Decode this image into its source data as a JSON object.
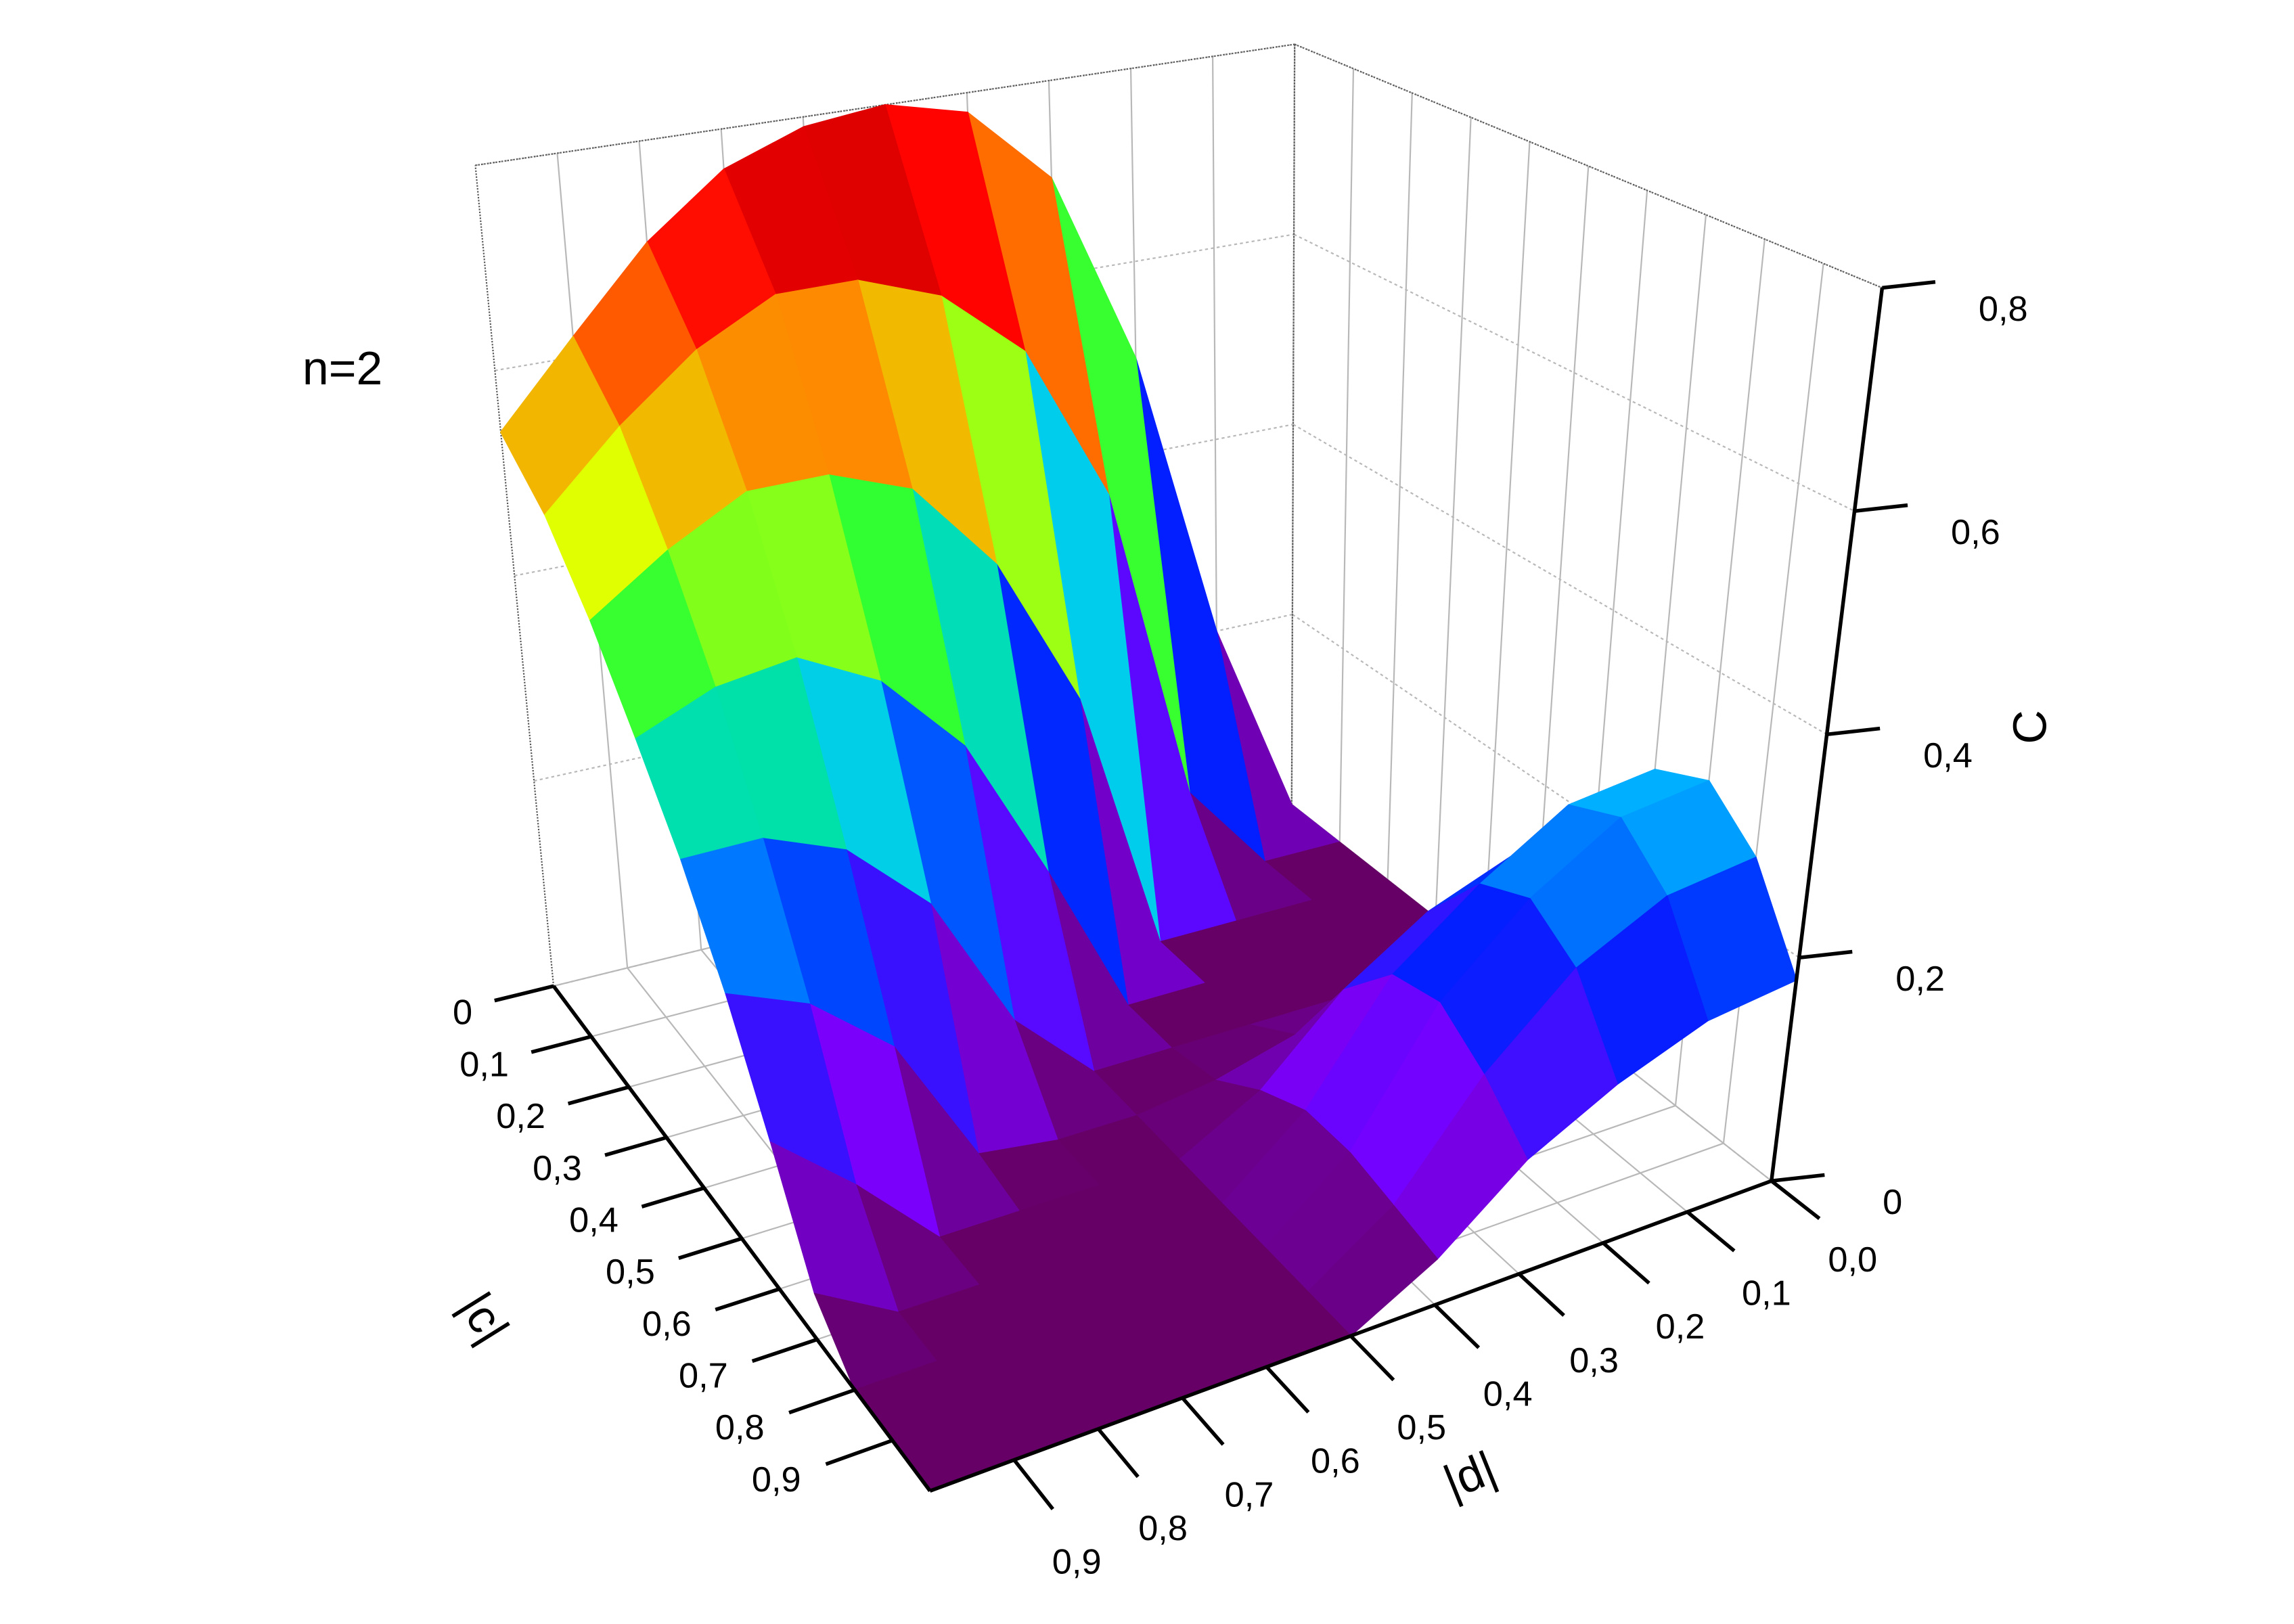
{
  "chart_data": {
    "type": "surface",
    "annotation": "n=2",
    "xlabel": "|c|",
    "ylabel": "|d|",
    "zlabel": "C",
    "x": [
      0,
      0.1,
      0.2,
      0.3,
      0.4,
      0.5,
      0.6,
      0.7,
      0.8,
      0.9,
      1.0
    ],
    "y": [
      0,
      0.1,
      0.2,
      0.3,
      0.4,
      0.5,
      0.6,
      0.7,
      0.8,
      0.9,
      1.0
    ],
    "z": [
      [
        0,
        0.2,
        0.5,
        0.7,
        0.78,
        0.8,
        0.79,
        0.76,
        0.7,
        0.62,
        0.54
      ],
      [
        0,
        0,
        0.09,
        0.41,
        0.57,
        0.64,
        0.67,
        0.67,
        0.63,
        0.57,
        0.5
      ],
      [
        0,
        0,
        0,
        0,
        0.26,
        0.41,
        0.5,
        0.53,
        0.53,
        0.49,
        0.44
      ],
      [
        0,
        0,
        0,
        0,
        0,
        0.15,
        0.29,
        0.37,
        0.41,
        0.4,
        0.37
      ],
      [
        0,
        0,
        0,
        0,
        0,
        0,
        0.07,
        0.2,
        0.27,
        0.3,
        0.3
      ],
      [
        0.06,
        0.06,
        0.05,
        0.03,
        0.01,
        0,
        0,
        0.01,
        0.13,
        0.19,
        0.22
      ],
      [
        0.2,
        0.19,
        0.16,
        0.11,
        0.04,
        0,
        0,
        0,
        0,
        0.07,
        0.13
      ],
      [
        0.28,
        0.27,
        0.22,
        0.16,
        0.06,
        0,
        0,
        0,
        0,
        0,
        0.04
      ],
      [
        0.3,
        0.29,
        0.24,
        0.17,
        0.06,
        0,
        0,
        0,
        0,
        0,
        0
      ],
      [
        0.26,
        0.25,
        0.21,
        0.14,
        0.05,
        0,
        0,
        0,
        0,
        0,
        0
      ],
      [
        0.18,
        0.17,
        0.14,
        0.1,
        0.04,
        0,
        0,
        0,
        0,
        0,
        0
      ]
    ],
    "xlim": [
      0,
      1
    ],
    "ylim": [
      0,
      1
    ],
    "zlim": [
      0,
      0.8
    ],
    "xticks": [
      0,
      {
        "value": 0.1,
        "label": "0,1"
      },
      {
        "value": 0.2,
        "label": "0,2"
      },
      {
        "value": 0.3,
        "label": "0,3"
      },
      {
        "value": 0.4,
        "label": "0,4"
      },
      {
        "value": 0.5,
        "label": "0,5"
      },
      {
        "value": 0.6,
        "label": "0,6"
      },
      {
        "value": 0.7,
        "label": "0,7"
      },
      {
        "value": 0.8,
        "label": "0,8"
      },
      {
        "value": 0.9,
        "label": "0,9"
      }
    ],
    "yticks": [
      {
        "value": 0,
        "label": "0,0"
      },
      {
        "value": 0.1,
        "label": "0,1"
      },
      {
        "value": 0.2,
        "label": "0,2"
      },
      {
        "value": 0.3,
        "label": "0,3"
      },
      {
        "value": 0.4,
        "label": "0,4"
      },
      {
        "value": 0.5,
        "label": "0,5"
      },
      {
        "value": 0.6,
        "label": "0,6"
      },
      {
        "value": 0.7,
        "label": "0,7"
      },
      {
        "value": 0.8,
        "label": "0,8"
      },
      {
        "value": 0.9,
        "label": "0,9"
      }
    ],
    "zticks": [
      0,
      {
        "value": 0.2,
        "label": "0,2"
      },
      {
        "value": 0.4,
        "label": "0,4"
      },
      {
        "value": 0.6,
        "label": "0,6"
      },
      {
        "value": 0.8,
        "label": "0,8"
      }
    ],
    "colormap": [
      "#660066",
      "#7a00ff",
      "#0020ff",
      "#00c8ff",
      "#00ff40",
      "#e0ff00",
      "#ff8000",
      "#ff0000",
      "#800000"
    ],
    "grid": true
  }
}
